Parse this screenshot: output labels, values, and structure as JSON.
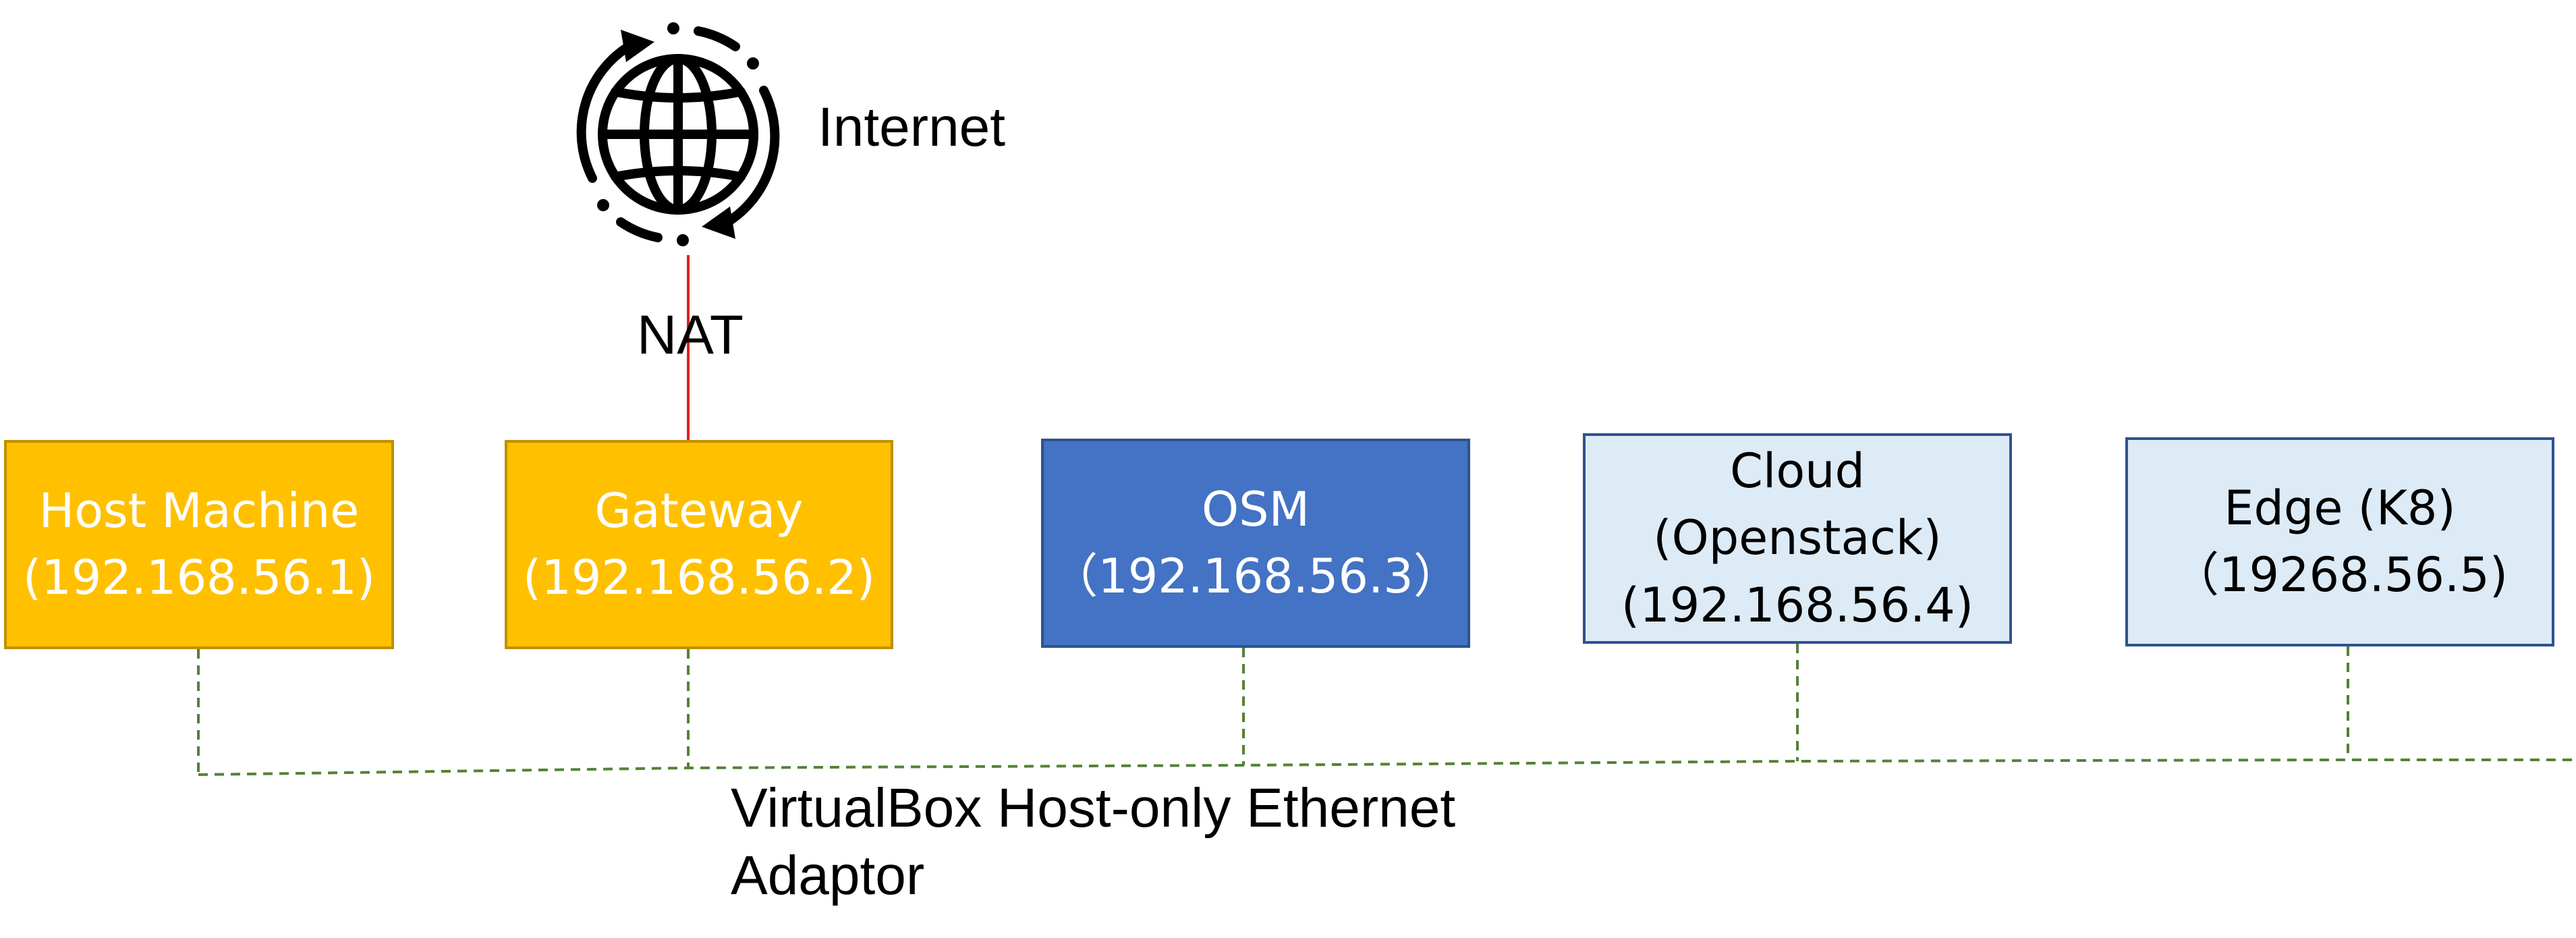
{
  "colors": {
    "gateway_fill": "#FFC000",
    "gateway_border": "#BF9000",
    "osm_fill": "#4472C4",
    "osm_border": "#2F528F",
    "light_fill": "#DDEBF7",
    "light_border": "#2F528F",
    "nat_line": "#E0201B",
    "bus_line": "#548235",
    "text_white": "#FFFFFF",
    "text_black": "#000000"
  },
  "internet": {
    "icon": "globe-refresh-icon",
    "label": "Internet"
  },
  "nat_label": "NAT",
  "bus_label": {
    "line1": "VirtualBox Host-only Ethernet",
    "line2": "Adaptor"
  },
  "nodes": {
    "host": {
      "line1": "Host Machine",
      "line2": "(192.168.56.1)"
    },
    "gateway": {
      "line1": "Gateway",
      "line2": "(192.168.56.2)"
    },
    "osm": {
      "line1": "OSM",
      "line2": "（192.168.56.3）"
    },
    "cloud": {
      "line1": "Cloud",
      "line2": "(Openstack)",
      "line3": "(192.168.56.4)"
    },
    "edge": {
      "line1": "Edge (K8)",
      "line2": "（19268.56.5)"
    }
  }
}
